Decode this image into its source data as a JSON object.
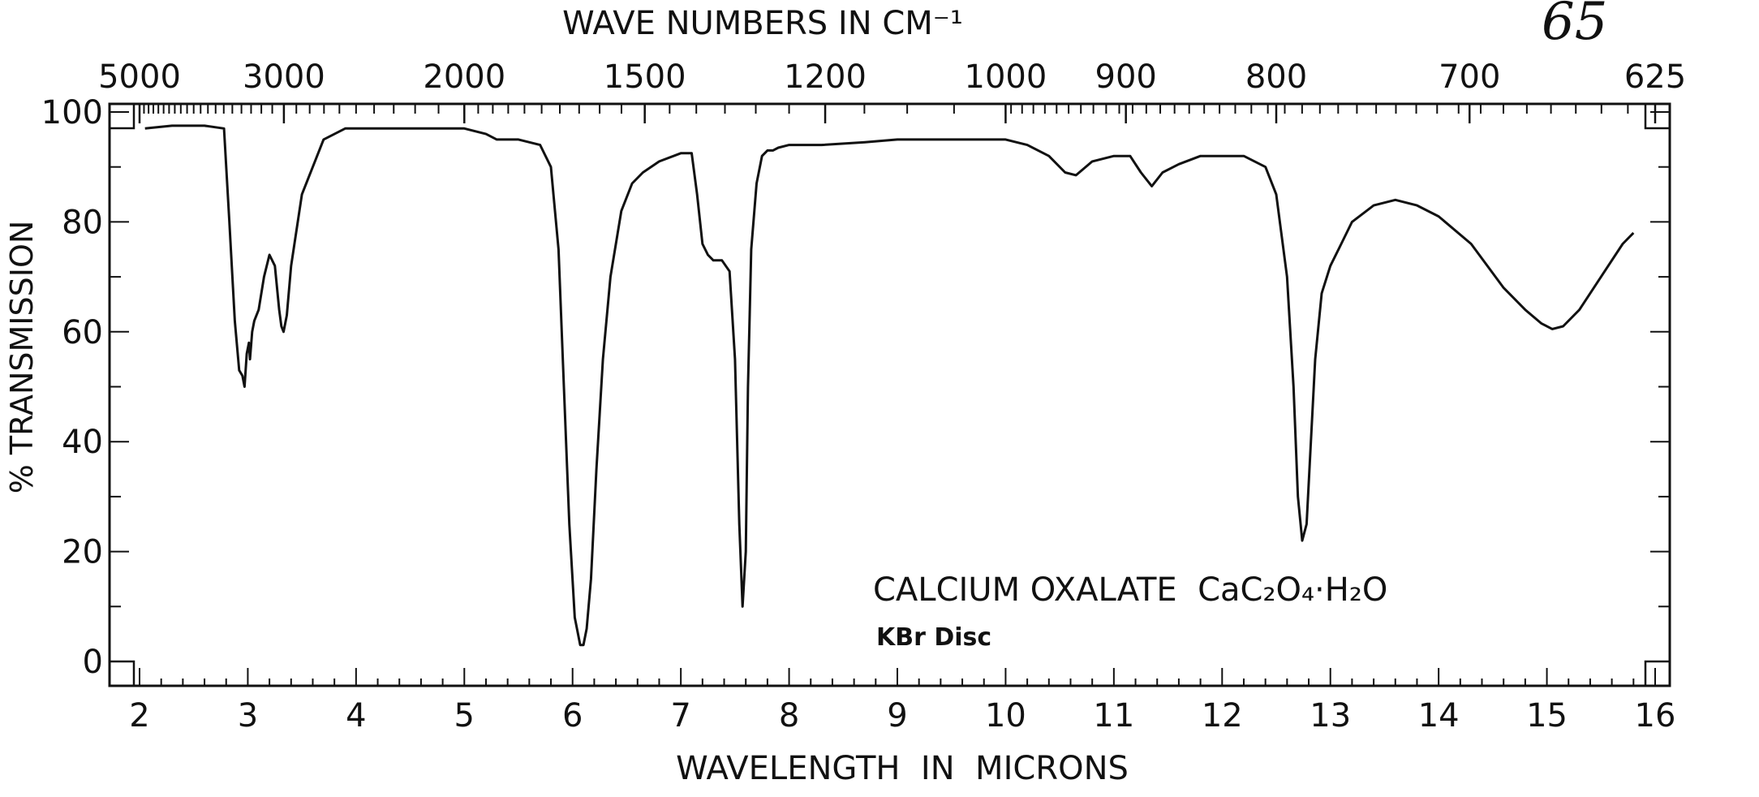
{
  "page_number": "65",
  "chart_data": {
    "type": "line",
    "title": "",
    "top_axis_label": "WAVE NUMBERS IN CM⁻¹",
    "xlabel": "WAVELENGTH  IN  MICRONS",
    "ylabel": "% TRANSMISSION",
    "x_unit": "microns",
    "xlim": [
      2,
      16
    ],
    "ylim": [
      0,
      100
    ],
    "grid": false,
    "x_ticks": [
      2,
      3,
      4,
      5,
      6,
      7,
      8,
      9,
      10,
      11,
      12,
      13,
      14,
      15,
      16
    ],
    "y_ticks": [
      0,
      20,
      40,
      60,
      80,
      100
    ],
    "top_ticks": [
      {
        "label": "5000",
        "wavenumber": 5000
      },
      {
        "label": "3000",
        "wavenumber": 3000
      },
      {
        "label": "2000",
        "wavenumber": 2000
      },
      {
        "label": "1500",
        "wavenumber": 1500
      },
      {
        "label": "1200",
        "wavenumber": 1200
      },
      {
        "label": "1000",
        "wavenumber": 1000
      },
      {
        "label": "900",
        "wavenumber": 900
      },
      {
        "label": "800",
        "wavenumber": 800
      },
      {
        "label": "700",
        "wavenumber": 700
      },
      {
        "label": "625",
        "wavenumber": 625
      }
    ],
    "annotations": [
      {
        "text": "CALCIUM OXALATE  CaC₂O₄·H₂O",
        "x": 8.8,
        "y": 13
      },
      {
        "text": "KBr Disc",
        "x": 8.8,
        "y": 4.5
      }
    ],
    "series": [
      {
        "x": [
          2.05,
          2.3,
          2.6,
          2.78,
          2.83,
          2.88,
          2.92,
          2.95,
          2.97,
          2.99,
          3.01,
          3.02,
          3.04,
          3.06,
          3.1,
          3.15,
          3.2,
          3.25,
          3.29,
          3.31,
          3.33,
          3.36,
          3.4,
          3.5,
          3.7,
          3.9,
          4.1,
          4.4,
          4.7,
          5.0,
          5.2,
          5.3,
          5.5,
          5.7,
          5.8,
          5.87,
          5.92,
          5.97,
          6.02,
          6.07,
          6.1,
          6.13,
          6.17,
          6.22,
          6.28,
          6.35,
          6.45,
          6.55,
          6.65,
          6.8,
          7.0,
          7.1,
          7.15,
          7.2,
          7.25,
          7.3,
          7.38,
          7.45,
          7.5,
          7.54,
          7.57,
          7.6,
          7.62,
          7.65,
          7.7,
          7.75,
          7.8,
          7.85,
          7.9,
          8.0,
          8.3,
          8.7,
          9.0,
          9.3,
          9.7,
          10.0,
          10.2,
          10.4,
          10.55,
          10.65,
          10.8,
          11.0,
          11.15,
          11.25,
          11.35,
          11.45,
          11.6,
          11.8,
          12.0,
          12.2,
          12.4,
          12.5,
          12.6,
          12.66,
          12.7,
          12.74,
          12.78,
          12.82,
          12.86,
          12.92,
          13.0,
          13.1,
          13.2,
          13.4,
          13.6,
          13.8,
          14.0,
          14.3,
          14.6,
          14.8,
          14.95,
          15.05,
          15.15,
          15.3,
          15.5,
          15.7,
          15.8
        ],
        "y": [
          97,
          97.5,
          97.5,
          97,
          80,
          62,
          53,
          52,
          50,
          56,
          58,
          55,
          60,
          62,
          64,
          70,
          74,
          72,
          64,
          61,
          60,
          63,
          72,
          85,
          95,
          97,
          97,
          97,
          97,
          97,
          96,
          95,
          95,
          94,
          90,
          75,
          50,
          25,
          8,
          3,
          3,
          6,
          15,
          35,
          55,
          70,
          82,
          87,
          89,
          91,
          92.5,
          92.5,
          85,
          76,
          74,
          73,
          73,
          71,
          55,
          25,
          10,
          20,
          50,
          75,
          87,
          92,
          93,
          93,
          93.5,
          94,
          94,
          94.5,
          95,
          95,
          95,
          95,
          94,
          92,
          89,
          88.5,
          91,
          92,
          92,
          89,
          86.5,
          89,
          90.5,
          92,
          92,
          92,
          90,
          85,
          70,
          50,
          30,
          22,
          25,
          40,
          55,
          67,
          72,
          76,
          80,
          83,
          84,
          83,
          81,
          76,
          68,
          64,
          61.5,
          60.5,
          61,
          64,
          70,
          76,
          78
        ]
      }
    ]
  }
}
